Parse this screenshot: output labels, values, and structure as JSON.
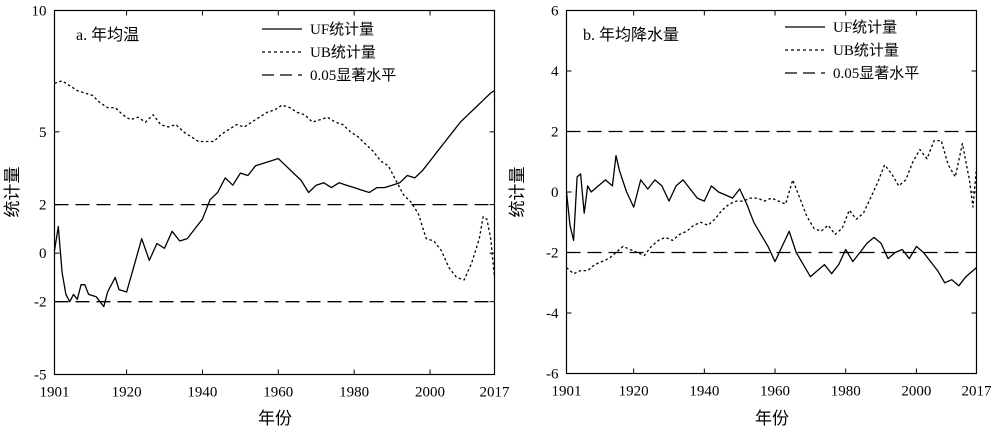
{
  "chart_data": [
    {
      "type": "line",
      "panel_label": "a. 年均温",
      "xlabel": "年份",
      "ylabel": "统计量",
      "xlim": [
        1901,
        2017
      ],
      "ylim": [
        -5,
        10
      ],
      "xticks": [
        1901,
        1920,
        1940,
        1960,
        1980,
        2000,
        2017
      ],
      "yticks": [
        -5,
        -2,
        0,
        2,
        5,
        10
      ],
      "grid": false,
      "legend": "top-right",
      "series": [
        {
          "name": "UF统计量",
          "style": "solid",
          "x": [
            1901,
            1902,
            1903,
            1904,
            1905,
            1906,
            1907,
            1908,
            1909,
            1910,
            1912,
            1914,
            1915,
            1917,
            1918,
            1920,
            1922,
            1924,
            1926,
            1928,
            1930,
            1932,
            1934,
            1936,
            1938,
            1940,
            1942,
            1944,
            1946,
            1948,
            1950,
            1952,
            1954,
            1956,
            1958,
            1960,
            1962,
            1964,
            1966,
            1968,
            1970,
            1972,
            1974,
            1976,
            1978,
            1980,
            1982,
            1984,
            1986,
            1988,
            1990,
            1992,
            1994,
            1996,
            1998,
            2000,
            2002,
            2004,
            2006,
            2008,
            2010,
            2012,
            2014,
            2016,
            2017
          ],
          "y": [
            0.1,
            1.1,
            -0.8,
            -1.7,
            -2.0,
            -1.7,
            -1.9,
            -1.3,
            -1.3,
            -1.7,
            -1.8,
            -2.2,
            -1.6,
            -1.0,
            -1.5,
            -1.6,
            -0.5,
            0.6,
            -0.3,
            0.4,
            0.2,
            0.9,
            0.5,
            0.6,
            1.0,
            1.4,
            2.2,
            2.5,
            3.1,
            2.8,
            3.3,
            3.2,
            3.6,
            3.7,
            3.8,
            3.9,
            3.6,
            3.3,
            3.0,
            2.5,
            2.8,
            2.9,
            2.7,
            2.9,
            2.8,
            2.7,
            2.6,
            2.5,
            2.7,
            2.7,
            2.8,
            2.9,
            3.2,
            3.1,
            3.4,
            3.8,
            4.2,
            4.6,
            5.0,
            5.4,
            5.7,
            6.0,
            6.3,
            6.6,
            6.7
          ]
        },
        {
          "name": "UB统计量",
          "style": "dotted",
          "x": [
            1901,
            1903,
            1905,
            1907,
            1909,
            1911,
            1913,
            1915,
            1917,
            1919,
            1921,
            1923,
            1925,
            1927,
            1929,
            1931,
            1933,
            1935,
            1937,
            1939,
            1941,
            1943,
            1945,
            1947,
            1949,
            1951,
            1953,
            1955,
            1957,
            1959,
            1961,
            1963,
            1965,
            1967,
            1969,
            1971,
            1973,
            1975,
            1977,
            1979,
            1981,
            1983,
            1985,
            1987,
            1989,
            1991,
            1993,
            1995,
            1997,
            1999,
            2001,
            2003,
            2005,
            2007,
            2009,
            2011,
            2013,
            2014,
            2015,
            2016,
            2017
          ],
          "y": [
            7.0,
            7.1,
            6.9,
            6.7,
            6.6,
            6.5,
            6.2,
            6.0,
            6.0,
            5.7,
            5.5,
            5.6,
            5.4,
            5.7,
            5.3,
            5.2,
            5.3,
            5.0,
            4.8,
            4.6,
            4.6,
            4.6,
            4.9,
            5.1,
            5.3,
            5.2,
            5.4,
            5.6,
            5.8,
            5.9,
            6.1,
            6.0,
            5.8,
            5.7,
            5.4,
            5.5,
            5.6,
            5.4,
            5.3,
            5.0,
            4.8,
            4.5,
            4.2,
            3.8,
            3.6,
            3.0,
            2.4,
            2.1,
            1.6,
            0.6,
            0.5,
            0.1,
            -0.6,
            -1.0,
            -1.1,
            -0.4,
            0.6,
            1.5,
            1.4,
            0.6,
            -1.0
          ]
        },
        {
          "name": "0.05显著水平",
          "style": "dashed",
          "y_levels": [
            2,
            -2
          ]
        }
      ]
    },
    {
      "type": "line",
      "panel_label": "b. 年均降水量",
      "xlabel": "年份",
      "ylabel": "统计量",
      "xlim": [
        1901,
        2017
      ],
      "ylim": [
        -6,
        6
      ],
      "xticks": [
        1901,
        1920,
        1940,
        1960,
        1980,
        2000,
        2017
      ],
      "yticks": [
        -6,
        -4,
        -2,
        0,
        2,
        4,
        6
      ],
      "grid": false,
      "legend": "top-right",
      "series": [
        {
          "name": "UF统计量",
          "style": "solid",
          "x": [
            1901,
            1902,
            1903,
            1904,
            1905,
            1906,
            1907,
            1908,
            1910,
            1912,
            1914,
            1915,
            1916,
            1918,
            1920,
            1922,
            1924,
            1926,
            1928,
            1930,
            1932,
            1934,
            1936,
            1938,
            1940,
            1942,
            1944,
            1946,
            1948,
            1950,
            1952,
            1954,
            1956,
            1958,
            1960,
            1962,
            1964,
            1966,
            1968,
            1970,
            1972,
            1974,
            1976,
            1978,
            1980,
            1982,
            1984,
            1986,
            1988,
            1990,
            1992,
            1994,
            1996,
            1998,
            2000,
            2002,
            2004,
            2006,
            2008,
            2010,
            2012,
            2014,
            2016,
            2017
          ],
          "y": [
            0.0,
            -1.1,
            -1.6,
            0.5,
            0.6,
            -0.7,
            0.2,
            0.0,
            0.2,
            0.4,
            0.2,
            1.2,
            0.7,
            0.0,
            -0.5,
            0.4,
            0.1,
            0.4,
            0.2,
            -0.3,
            0.2,
            0.4,
            0.1,
            -0.2,
            -0.3,
            0.2,
            0.0,
            -0.1,
            -0.2,
            0.1,
            -0.4,
            -1.0,
            -1.4,
            -1.8,
            -2.3,
            -1.8,
            -1.3,
            -2.0,
            -2.4,
            -2.8,
            -2.6,
            -2.4,
            -2.7,
            -2.4,
            -1.9,
            -2.3,
            -2.0,
            -1.7,
            -1.5,
            -1.7,
            -2.2,
            -2.0,
            -1.9,
            -2.2,
            -1.8,
            -2.0,
            -2.3,
            -2.6,
            -3.0,
            -2.9,
            -3.1,
            -2.8,
            -2.6,
            -2.5
          ]
        },
        {
          "name": "UB统计量",
          "style": "dotted",
          "x": [
            1901,
            1903,
            1905,
            1907,
            1909,
            1911,
            1913,
            1915,
            1917,
            1919,
            1921,
            1923,
            1925,
            1927,
            1929,
            1931,
            1933,
            1935,
            1937,
            1939,
            1941,
            1943,
            1945,
            1947,
            1949,
            1951,
            1953,
            1955,
            1957,
            1959,
            1961,
            1963,
            1965,
            1967,
            1969,
            1971,
            1973,
            1975,
            1977,
            1979,
            1981,
            1983,
            1985,
            1987,
            1989,
            1991,
            1993,
            1995,
            1997,
            1999,
            2001,
            2003,
            2005,
            2007,
            2009,
            2011,
            2013,
            2015,
            2016,
            2017
          ],
          "y": [
            -2.5,
            -2.7,
            -2.6,
            -2.6,
            -2.4,
            -2.3,
            -2.2,
            -2.0,
            -1.8,
            -1.9,
            -2.0,
            -2.1,
            -1.8,
            -1.6,
            -1.5,
            -1.6,
            -1.4,
            -1.3,
            -1.1,
            -1.0,
            -1.1,
            -0.9,
            -0.6,
            -0.4,
            -0.3,
            -0.3,
            -0.2,
            -0.2,
            -0.3,
            -0.2,
            -0.3,
            -0.4,
            0.4,
            -0.2,
            -0.8,
            -1.2,
            -1.3,
            -1.1,
            -1.4,
            -1.2,
            -0.6,
            -0.9,
            -0.7,
            -0.2,
            0.3,
            0.9,
            0.6,
            0.2,
            0.4,
            1.0,
            1.4,
            1.1,
            1.7,
            1.7,
            0.9,
            0.5,
            1.6,
            0.4,
            -0.5,
            0.8
          ]
        },
        {
          "name": "0.05显著水平",
          "style": "dashed",
          "y_levels": [
            2,
            -2
          ]
        }
      ]
    }
  ]
}
